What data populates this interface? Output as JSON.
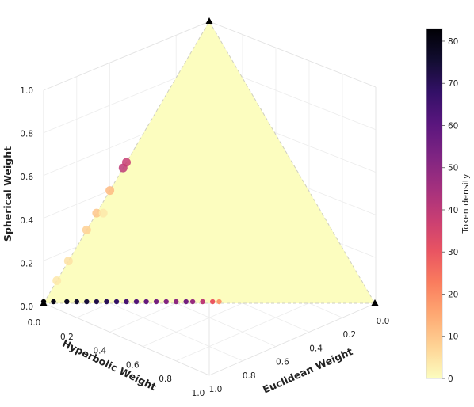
{
  "chart_data": {
    "type": "heatmap",
    "plot": "ternary",
    "title": "",
    "axes": [
      {
        "name": "spherical",
        "label": "Spherical Weight",
        "ticks": [
          "0.0",
          "0.2",
          "0.4",
          "0.6",
          "0.8",
          "1.0"
        ]
      },
      {
        "name": "hyperbolic",
        "label": "Hyperbolic Weight",
        "ticks": [
          "0.0",
          "0.2",
          "0.4",
          "0.6",
          "0.8",
          "1.0"
        ]
      },
      {
        "name": "euclidean",
        "label": "Euclidean Weight",
        "ticks": [
          "0.0",
          "0.2",
          "0.4",
          "0.6",
          "0.8",
          "1.0"
        ]
      }
    ],
    "colorbar": {
      "label": "Token density",
      "range": [
        0,
        83
      ],
      "ticks": [
        "0",
        "10",
        "20",
        "30",
        "40",
        "50",
        "60",
        "70",
        "80"
      ],
      "colormap": [
        "#fcfdbf",
        "#fed395",
        "#fea973",
        "#fa7d5e",
        "#e95462",
        "#c83e73",
        "#a3307e",
        "#7e2482",
        "#5a167e",
        "#331067",
        "#120d31",
        "#000004"
      ]
    },
    "grid": true,
    "points": [
      {
        "h": 1.0,
        "e": 0.0,
        "s": 0.0,
        "density": 83
      },
      {
        "h": 0.97,
        "e": 0.03,
        "s": 0.0,
        "density": 80
      },
      {
        "h": 0.93,
        "e": 0.07,
        "s": 0.0,
        "density": 78
      },
      {
        "h": 0.9,
        "e": 0.1,
        "s": 0.0,
        "density": 76
      },
      {
        "h": 0.87,
        "e": 0.13,
        "s": 0.0,
        "density": 74
      },
      {
        "h": 0.84,
        "e": 0.16,
        "s": 0.0,
        "density": 72
      },
      {
        "h": 0.81,
        "e": 0.19,
        "s": 0.0,
        "density": 70
      },
      {
        "h": 0.78,
        "e": 0.22,
        "s": 0.0,
        "density": 68
      },
      {
        "h": 0.75,
        "e": 0.25,
        "s": 0.0,
        "density": 64
      },
      {
        "h": 0.72,
        "e": 0.28,
        "s": 0.0,
        "density": 62
      },
      {
        "h": 0.69,
        "e": 0.31,
        "s": 0.0,
        "density": 58
      },
      {
        "h": 0.66,
        "e": 0.34,
        "s": 0.0,
        "density": 55
      },
      {
        "h": 0.63,
        "e": 0.37,
        "s": 0.0,
        "density": 52
      },
      {
        "h": 0.6,
        "e": 0.4,
        "s": 0.0,
        "density": 50
      },
      {
        "h": 0.57,
        "e": 0.43,
        "s": 0.0,
        "density": 55
      },
      {
        "h": 0.55,
        "e": 0.45,
        "s": 0.0,
        "density": 48
      },
      {
        "h": 0.52,
        "e": 0.48,
        "s": 0.0,
        "density": 40
      },
      {
        "h": 0.49,
        "e": 0.51,
        "s": 0.0,
        "density": 30
      },
      {
        "h": 0.47,
        "e": 0.53,
        "s": 0.0,
        "density": 18
      },
      {
        "h": 0.74,
        "e": 0.0,
        "s": 0.26,
        "density": 8
      },
      {
        "h": 0.68,
        "e": 0.0,
        "s": 0.32,
        "density": 10
      },
      {
        "h": 0.6,
        "e": 0.0,
        "s": 0.4,
        "density": 12
      },
      {
        "h": 0.52,
        "e": 0.0,
        "s": 0.48,
        "density": 40
      },
      {
        "h": 0.5,
        "e": 0.0,
        "s": 0.5,
        "density": 38
      },
      {
        "h": 0.85,
        "e": 0.0,
        "s": 0.15,
        "density": 5
      },
      {
        "h": 0.66,
        "e": 0.02,
        "s": 0.32,
        "density": 4
      },
      {
        "h": 0.92,
        "e": 0.0,
        "s": 0.08,
        "density": 4
      }
    ]
  }
}
